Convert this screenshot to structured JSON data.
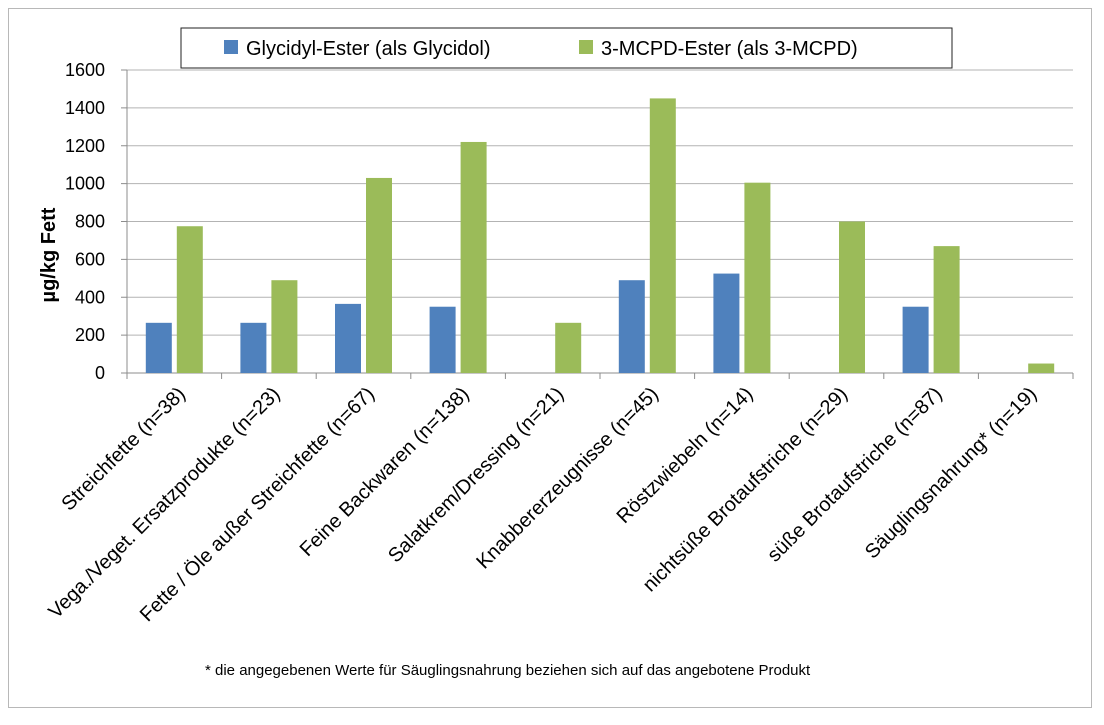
{
  "chart_data": {
    "type": "bar",
    "ylabel": "µg/kg Fett",
    "ylim": [
      0,
      1600
    ],
    "yticks": [
      0,
      200,
      400,
      600,
      800,
      1000,
      1200,
      1400,
      1600
    ],
    "grid": true,
    "legend_position": "top",
    "categories": [
      "Streichfette (n=38)",
      "Vega./Veget. Ersatzprodukte (n=23)",
      "Fette / Öle außer Streichfette (n=67)",
      "Feine Backwaren (n=138)",
      "Salatkrem/Dressing (n=21)",
      "Knabbererzeugnisse (n=45)",
      "Röstzwiebeln (n=14)",
      "nichtsüße Brotaufstriche (n=29)",
      "süße Brotaufstriche (n=87)",
      "Säuglingsnahrung* (n=19)"
    ],
    "series": [
      {
        "name": "Glycidyl-Ester (als Glycidol)",
        "color": "#4f81bd",
        "values": [
          265,
          265,
          365,
          350,
          0,
          490,
          525,
          0,
          350,
          0
        ]
      },
      {
        "name": "3-MCPD-Ester (als 3-MCPD)",
        "color": "#9bbb59",
        "values": [
          775,
          490,
          1030,
          1220,
          265,
          1450,
          1005,
          800,
          670,
          50
        ]
      }
    ],
    "footnote": "* die angegebenen  Werte für Säuglingsnahrung beziehen sich auf das angebotene Produkt"
  }
}
